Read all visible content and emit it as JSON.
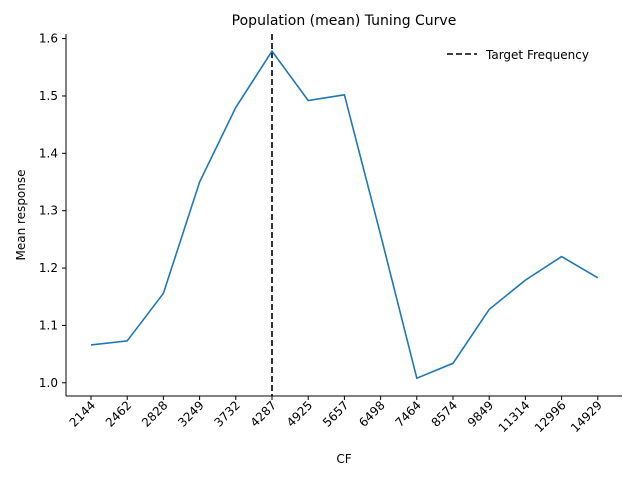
{
  "chart_data": {
    "type": "line",
    "title": "Population (mean) Tuning Curve",
    "xlabel": "CF",
    "ylabel": "Mean response",
    "categories": [
      "2144",
      "2462",
      "2828",
      "3249",
      "3732",
      "4287",
      "4925",
      "5657",
      "6498",
      "7464",
      "8574",
      "9849",
      "11314",
      "12996",
      "14929"
    ],
    "series": [
      {
        "values": [
          1.066,
          1.073,
          1.156,
          1.35,
          1.48,
          1.578,
          1.492,
          1.502,
          1.258,
          1.008,
          1.034,
          1.128,
          1.179,
          1.22,
          1.183
        ],
        "color": "#1f77b4"
      }
    ],
    "reference_line": {
      "category": "4287",
      "label": "Target Frequency",
      "style": "dashed",
      "color": "#000000"
    },
    "ylim": [
      0.977,
      1.608
    ],
    "yticks": [
      "1.0",
      "1.1",
      "1.2",
      "1.3",
      "1.4",
      "1.5",
      "1.6"
    ],
    "grid": false,
    "legend_placement": "top-right",
    "spines": "left-bottom"
  }
}
